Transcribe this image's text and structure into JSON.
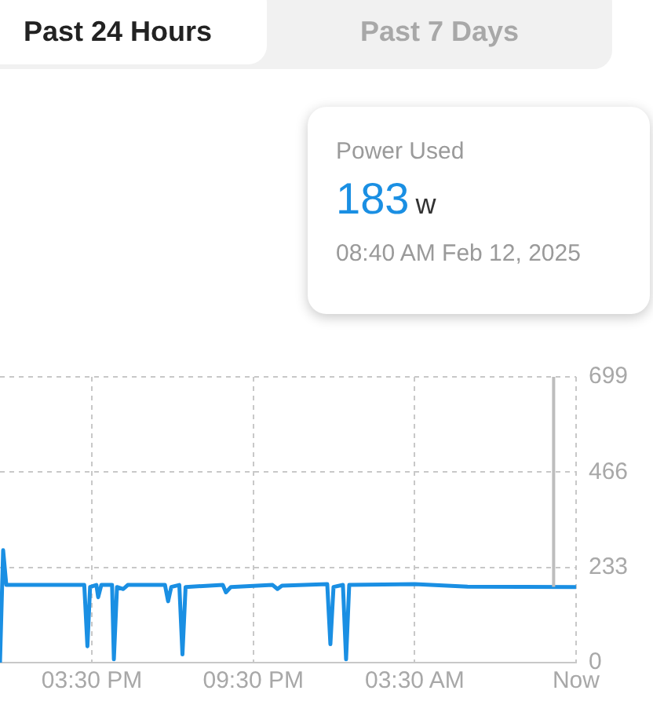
{
  "chart_data": {
    "type": "line",
    "annotations": [
      "Past 24 Hours",
      "Past 7 Days",
      "Power Used",
      "183",
      "w",
      "08:40 AM  Feb 12, 2025"
    ],
    "x": [
      "2025-02-11T12:05",
      "2025-02-11T12:12",
      "2025-02-11T12:19",
      "2025-02-11T15:13",
      "2025-02-11T15:20",
      "2025-02-11T15:26",
      "2025-02-11T15:40",
      "2025-02-11T15:44",
      "2025-02-11T15:51",
      "2025-02-11T16:15",
      "2025-02-11T16:19",
      "2025-02-11T16:26",
      "2025-02-11T16:40",
      "2025-02-11T16:50",
      "2025-02-11T18:13",
      "2025-02-11T18:20",
      "2025-02-11T18:27",
      "2025-02-11T18:45",
      "2025-02-11T18:52",
      "2025-02-11T18:59",
      "2025-02-11T20:22",
      "2025-02-11T20:29",
      "2025-02-11T20:40",
      "2025-02-11T22:13",
      "2025-02-11T22:24",
      "2025-02-11T22:34",
      "2025-02-12T00:15",
      "2025-02-12T00:22",
      "2025-02-12T00:29",
      "2025-02-12T00:50",
      "2025-02-12T00:57",
      "2025-02-12T01:04",
      "2025-02-12T03:30",
      "2025-02-12T05:28",
      "2025-02-12T09:30"
    ],
    "series": [
      {
        "color": "#1a8fe3",
        "values": [
          0,
          275,
          190,
          190,
          40,
          185,
          190,
          160,
          190,
          190,
          8,
          185,
          180,
          190,
          190,
          150,
          185,
          190,
          20,
          185,
          190,
          172,
          185,
          190,
          180,
          188,
          192,
          45,
          185,
          190,
          8,
          190,
          192,
          186,
          185
        ]
      }
    ],
    "xlim": [
      "2025-02-11T12:05",
      "2025-02-12T09:30"
    ],
    "xticks": [
      {
        "value": "2025-02-11T15:30",
        "label": "03:30 PM"
      },
      {
        "value": "2025-02-11T21:30",
        "label": "09:30 PM"
      },
      {
        "value": "2025-02-12T03:30",
        "label": "03:30 AM"
      },
      {
        "value": "2025-02-12T09:30",
        "label": "Now"
      }
    ],
    "ylim": [
      0,
      699
    ],
    "yticks": [
      0,
      233,
      466,
      699
    ],
    "ref_lines": [
      {
        "axis": "x",
        "value": "2025-02-12T08:40",
        "color": "#bdbdbd"
      }
    ],
    "grid": true,
    "legend": false,
    "marker": "none",
    "line_style": "solid"
  }
}
